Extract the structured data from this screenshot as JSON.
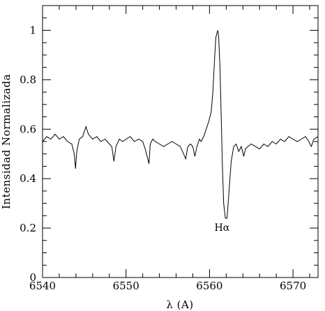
{
  "chart_data": {
    "type": "line",
    "title": "",
    "xlabel": "λ (A)",
    "ylabel": "Intensidad Normalizada",
    "xlim": [
      6540,
      6573
    ],
    "ylim": [
      0,
      1.1
    ],
    "x_ticks": [
      6540,
      6550,
      6560,
      6570
    ],
    "y_ticks": [
      0,
      0.2,
      0.4,
      0.6,
      0.8,
      1
    ],
    "x_tick_labels": [
      "6540",
      "6550",
      "6560",
      "6570"
    ],
    "y_tick_labels": [
      "0",
      "0.2",
      "0.4",
      "0.6",
      "0.8",
      "1"
    ],
    "grid": false,
    "legend": "none",
    "annotation": {
      "text": "Hα",
      "x": 6561.5,
      "y": 0.2
    },
    "series": [
      {
        "x": [
          6540.0,
          6540.5,
          6541.0,
          6541.5,
          6542.0,
          6542.5,
          6543.0,
          6543.5,
          6543.8,
          6543.95,
          6544.1,
          6544.4,
          6544.8,
          6545.0,
          6545.2,
          6545.5,
          6546.0,
          6546.5,
          6547.0,
          6547.5,
          6548.0,
          6548.3,
          6548.55,
          6548.8,
          6549.2,
          6549.6,
          6550.0,
          6550.5,
          6551.0,
          6551.5,
          6552.0,
          6552.3,
          6552.6,
          6552.75,
          6552.9,
          6553.2,
          6553.5,
          6554.0,
          6554.5,
          6555.0,
          6555.5,
          6556.0,
          6556.5,
          6556.9,
          6557.15,
          6557.4,
          6557.7,
          6558.0,
          6558.25,
          6558.5,
          6558.8,
          6559.0,
          6559.3,
          6559.6,
          6559.9,
          6560.2,
          6560.4,
          6560.6,
          6560.75,
          6560.9,
          6561.0,
          6561.1,
          6561.25,
          6561.4,
          6561.55,
          6561.7,
          6561.9,
          6562.1,
          6562.3,
          6562.6,
          6562.9,
          6563.2,
          6563.5,
          6563.8,
          6564.1,
          6564.3,
          6564.6,
          6565.0,
          6565.5,
          6566.0,
          6566.5,
          6567.0,
          6567.5,
          6568.0,
          6568.5,
          6569.0,
          6569.5,
          6570.0,
          6570.5,
          6571.0,
          6571.5,
          6571.9,
          6572.2,
          6572.5,
          6573.0
        ],
        "y": [
          0.55,
          0.57,
          0.56,
          0.58,
          0.56,
          0.57,
          0.55,
          0.54,
          0.5,
          0.44,
          0.51,
          0.56,
          0.57,
          0.59,
          0.61,
          0.58,
          0.56,
          0.57,
          0.55,
          0.56,
          0.54,
          0.53,
          0.47,
          0.53,
          0.56,
          0.55,
          0.56,
          0.57,
          0.55,
          0.56,
          0.55,
          0.52,
          0.48,
          0.46,
          0.54,
          0.56,
          0.55,
          0.54,
          0.53,
          0.54,
          0.55,
          0.54,
          0.53,
          0.5,
          0.48,
          0.53,
          0.54,
          0.53,
          0.49,
          0.53,
          0.56,
          0.55,
          0.57,
          0.6,
          0.63,
          0.67,
          0.75,
          0.88,
          0.97,
          0.99,
          1.0,
          0.97,
          0.85,
          0.65,
          0.45,
          0.3,
          0.24,
          0.24,
          0.33,
          0.47,
          0.53,
          0.54,
          0.51,
          0.53,
          0.49,
          0.52,
          0.53,
          0.54,
          0.53,
          0.52,
          0.54,
          0.53,
          0.55,
          0.54,
          0.56,
          0.55,
          0.57,
          0.56,
          0.55,
          0.56,
          0.57,
          0.55,
          0.53,
          0.56,
          0.57
        ]
      }
    ]
  }
}
